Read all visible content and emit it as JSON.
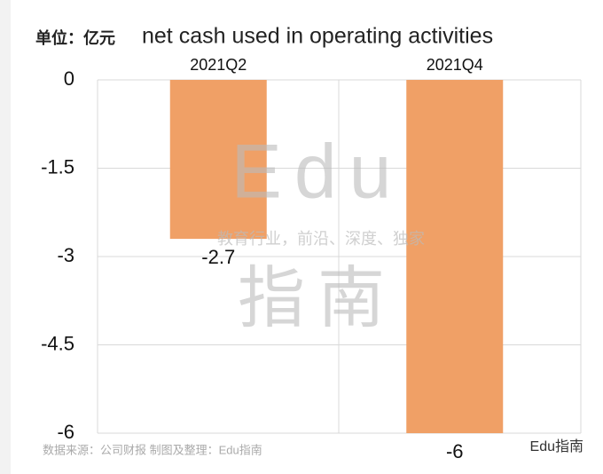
{
  "chart_data": {
    "type": "bar",
    "unit_label": "单位：亿元",
    "title": "net cash used in operating activities",
    "categories": [
      "2021Q2",
      "2021Q4"
    ],
    "values": [
      -2.7,
      -6
    ],
    "color": "#f0a066",
    "ylim": [
      -6,
      0
    ],
    "yticks": [
      0,
      -1.5,
      -3,
      -4.5,
      -6
    ],
    "grid": true,
    "watermark": {
      "brand": "Edu",
      "brand_cn": "指南",
      "slogan": "教育行业，前沿、深度、独家"
    },
    "source": "数据来源：公司财报  制图及整理：Edu指南",
    "logo": "Edu指南"
  }
}
